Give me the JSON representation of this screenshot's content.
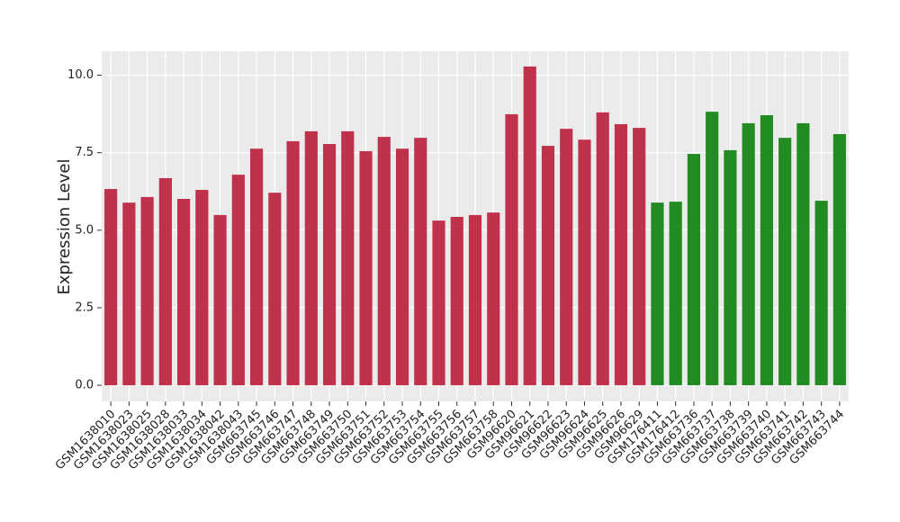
{
  "chart_data": {
    "type": "bar",
    "y_label": "Expression Level",
    "categories": [
      "GSM1638010",
      "GSM1638023",
      "GSM1638025",
      "GSM1638028",
      "GSM1638033",
      "GSM1638034",
      "GSM1638042",
      "GSM1638043",
      "GSM663745",
      "GSM663746",
      "GSM663747",
      "GSM663748",
      "GSM663749",
      "GSM663750",
      "GSM663751",
      "GSM663752",
      "GSM663753",
      "GSM663754",
      "GSM663755",
      "GSM663756",
      "GSM663757",
      "GSM663758",
      "GSM96620",
      "GSM96621",
      "GSM96622",
      "GSM96623",
      "GSM96624",
      "GSM96625",
      "GSM96626",
      "GSM96629",
      "GSM176411",
      "GSM176412",
      "GSM663736",
      "GSM663737",
      "GSM663738",
      "GSM663739",
      "GSM663740",
      "GSM663741",
      "GSM663742",
      "GSM663743",
      "GSM663744"
    ],
    "values": [
      6.33,
      5.89,
      6.07,
      6.68,
      6.01,
      6.3,
      5.49,
      6.79,
      7.63,
      6.21,
      7.87,
      8.19,
      7.78,
      8.19,
      7.55,
      8.01,
      7.63,
      7.98,
      5.31,
      5.43,
      5.49,
      5.57,
      8.74,
      10.28,
      7.72,
      8.27,
      7.92,
      8.8,
      8.42,
      8.3,
      5.89,
      5.92,
      7.46,
      8.82,
      7.58,
      8.45,
      8.71,
      7.98,
      8.45,
      5.95,
      8.1
    ],
    "colors": [
      "#c0314b",
      "#c0314b",
      "#c0314b",
      "#c0314b",
      "#c0314b",
      "#c0314b",
      "#c0314b",
      "#c0314b",
      "#c0314b",
      "#c0314b",
      "#c0314b",
      "#c0314b",
      "#c0314b",
      "#c0314b",
      "#c0314b",
      "#c0314b",
      "#c0314b",
      "#c0314b",
      "#c0314b",
      "#c0314b",
      "#c0314b",
      "#c0314b",
      "#c0314b",
      "#c0314b",
      "#c0314b",
      "#c0314b",
      "#c0314b",
      "#c0314b",
      "#c0314b",
      "#c0314b",
      "#228b22",
      "#228b22",
      "#228b22",
      "#228b22",
      "#228b22",
      "#228b22",
      "#228b22",
      "#228b22",
      "#228b22",
      "#228b22",
      "#228b22"
    ],
    "ylim": [
      -0.52,
      10.77
    ],
    "yticks": [
      {
        "value": 0,
        "label": "0.0"
      },
      2.5,
      {
        "value": 5,
        "label": "5.0"
      },
      7.5,
      {
        "value": 10,
        "label": "10.0"
      }
    ],
    "grid": true
  }
}
